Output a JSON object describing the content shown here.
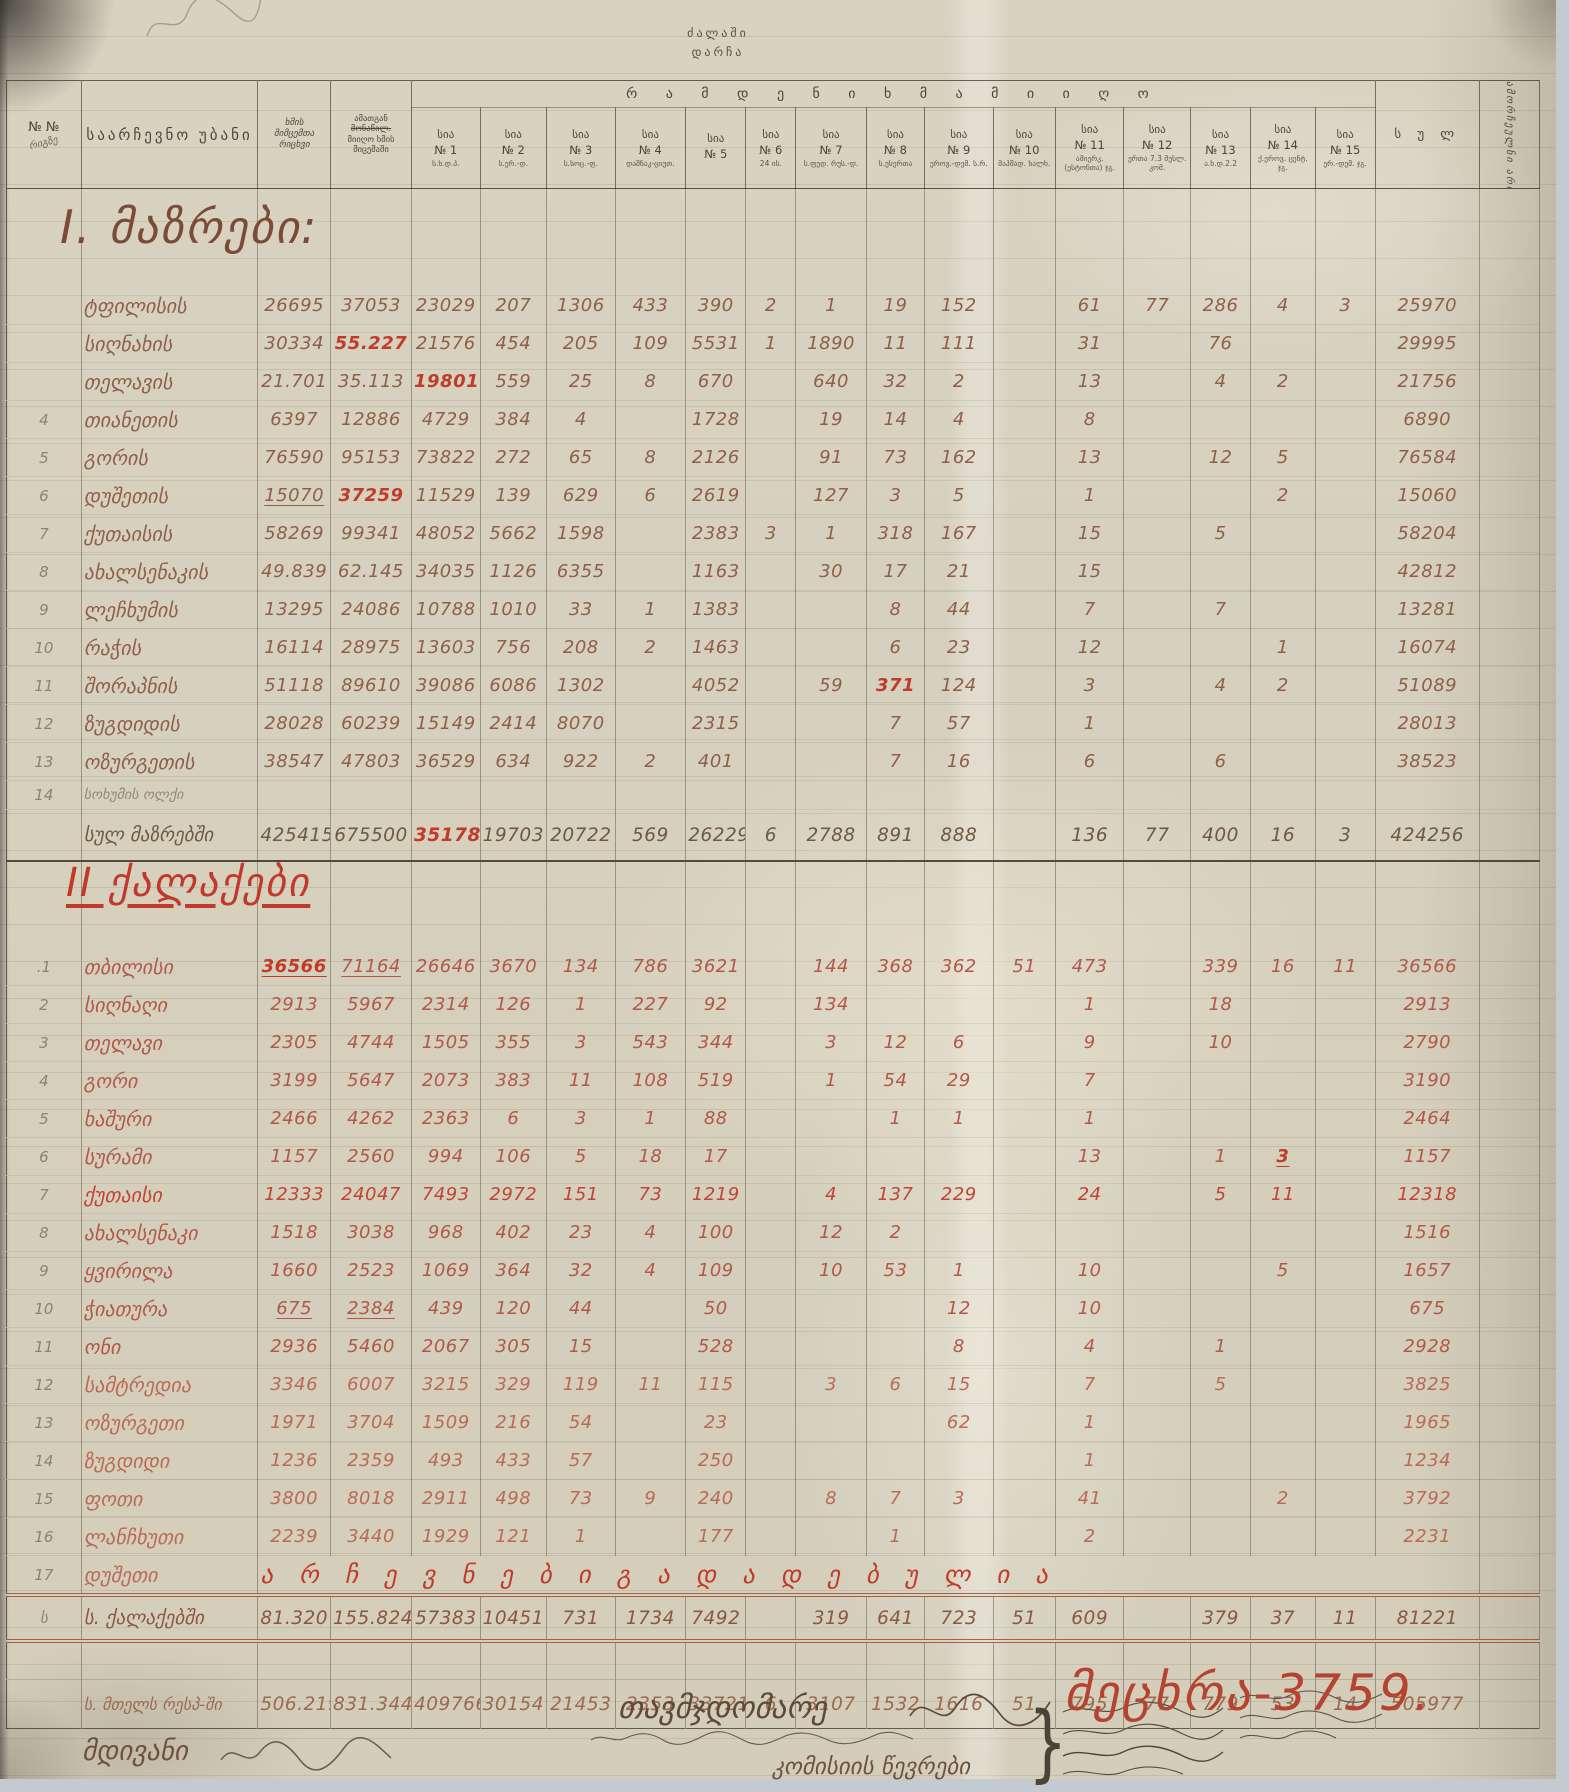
{
  "document": {
    "top_note": {
      "line1": "ძალაში",
      "line2": "დარჩა"
    }
  },
  "header": {
    "col_no": "№ №",
    "col_no_sub": "რიგზე",
    "col_precinct": "საარჩევნო უბანი",
    "col_a_lines": [
      "ხმის",
      "მიმცემთა",
      "რიცხვი"
    ],
    "col_b_lines": [
      "ამათგან",
      "მონაწილ.",
      "მიიღო ხმის",
      "მიცემაში"
    ],
    "votes_title": "რ ა მ დ ე ნ ი   ხ მ ა   მ ი ი ღ ო",
    "list_word": "სია",
    "lists": [
      {
        "no": "№ 1",
        "sub": "ს.ხ.დ.პ."
      },
      {
        "no": "№ 2",
        "sub": "ს.ერ.-დ."
      },
      {
        "no": "№ 3",
        "sub": "ს.სოც.-ფ."
      },
      {
        "no": "№ 4",
        "sub": "დაშნაკ-ციუთ."
      },
      {
        "no": "№ 5",
        "sub": ""
      },
      {
        "no": "№ 6",
        "sub": "24 ის."
      },
      {
        "no": "№ 7",
        "sub": "ს.ფედ. რუს.-დ."
      },
      {
        "no": "№ 8",
        "sub": "ს.ესერთა"
      },
      {
        "no": "№ 9",
        "sub": "ეროვ.-დემ. ს.რ."
      },
      {
        "no": "№ 10",
        "sub": "მაჰმად. ხალხ."
      },
      {
        "no": "№ 11",
        "sub": "ამიერკ. (ესტონთა) ჯგ."
      },
      {
        "no": "№ 12",
        "sub": "ერთა 7.3 მუსლ. კომ."
      },
      {
        "no": "№ 13",
        "sub": "ა.ხ.დ.2.2"
      },
      {
        "no": "№ 14",
        "sub": "ქ.ეროვ. ცენტ. ჯგ."
      },
      {
        "no": "№ 15",
        "sub": "ერ.-დემ. ჯგ."
      }
    ],
    "col_total": "ს უ ლ",
    "col_remark_vertical": "ამორჩეულნი არიან"
  },
  "sections": [
    {
      "title": "I. მაზრები:",
      "ink": "#8f5f4a",
      "rows": [
        {
          "no": "",
          "name": "ტფილისის",
          "v": [
            "26695",
            "37053",
            "23029",
            "207",
            "1306",
            "433",
            "390",
            "2",
            "1",
            "19",
            "152",
            "",
            "61",
            "77",
            "286",
            "4",
            "3",
            "25970"
          ]
        },
        {
          "no": "",
          "name": "სიღნახის",
          "v": [
            "30334",
            "55.227",
            "21576",
            "454",
            "205",
            "109",
            "5531",
            "1",
            "1890",
            "11",
            "111",
            "",
            "31",
            "",
            "76",
            "",
            "",
            "29995"
          ],
          "red": [
            1
          ]
        },
        {
          "no": "",
          "name": "თელავის",
          "v": [
            "21.701",
            "35.113",
            "19801",
            "559",
            "25",
            "8",
            "670",
            "",
            "640",
            "32",
            "2",
            "",
            "13",
            "",
            "4",
            "2",
            "",
            "21756"
          ],
          "red": [
            2
          ]
        },
        {
          "no": "4",
          "name": "თიანეთის",
          "v": [
            "6397",
            "12886",
            "4729",
            "384",
            "4",
            "",
            "1728",
            "",
            "19",
            "14",
            "4",
            "",
            "8",
            "",
            "",
            "",
            "",
            "6890"
          ]
        },
        {
          "no": "5",
          "name": "გორის",
          "v": [
            "76590",
            "95153",
            "73822",
            "272",
            "65",
            "8",
            "2126",
            "",
            "91",
            "73",
            "162",
            "",
            "13",
            "",
            "12",
            "5",
            "",
            "76584"
          ]
        },
        {
          "no": "6",
          "name": "დუშეთის",
          "v": [
            "15070",
            "37259",
            "11529",
            "139",
            "629",
            "6",
            "2619",
            "",
            "127",
            "3",
            "5",
            "",
            "1",
            "",
            "",
            "2",
            "",
            "15060"
          ],
          "red": [
            1
          ],
          "ul": [
            0
          ]
        },
        {
          "no": "7",
          "name": "ქუთაისის",
          "v": [
            "58269",
            "99341",
            "48052",
            "5662",
            "1598",
            "",
            "2383",
            "3",
            "1",
            "318",
            "167",
            "",
            "15",
            "",
            "5",
            "",
            "",
            "58204"
          ]
        },
        {
          "no": "8",
          "name": "ახალსენაკის",
          "v": [
            "49.839",
            "62.145",
            "34035",
            "1126",
            "6355",
            "",
            "1163",
            "",
            "30",
            "17",
            "21",
            "",
            "15",
            "",
            "",
            "",
            "",
            "42812"
          ]
        },
        {
          "no": "9",
          "name": "ლეჩხუმის",
          "v": [
            "13295",
            "24086",
            "10788",
            "1010",
            "33",
            "1",
            "1383",
            "",
            "",
            "8",
            "44",
            "",
            "7",
            "",
            "7",
            "",
            "",
            "13281"
          ]
        },
        {
          "no": "10",
          "name": "რაჭის",
          "v": [
            "16114",
            "28975",
            "13603",
            "756",
            "208",
            "2",
            "1463",
            "",
            "",
            "6",
            "23",
            "",
            "12",
            "",
            "",
            "1",
            "",
            "16074"
          ]
        },
        {
          "no": "11",
          "name": "შორაპნის",
          "v": [
            "51118",
            "89610",
            "39086",
            "6086",
            "1302",
            "",
            "4052",
            "",
            "59",
            "371",
            "124",
            "",
            "3",
            "",
            "4",
            "2",
            "",
            "51089"
          ],
          "red": [
            9
          ]
        },
        {
          "no": "12",
          "name": "ზუგდიდის",
          "v": [
            "28028",
            "60239",
            "15149",
            "2414",
            "8070",
            "",
            "2315",
            "",
            "",
            "7",
            "57",
            "",
            "1",
            "",
            "",
            "",
            "",
            "28013"
          ]
        },
        {
          "no": "13",
          "name": "ოზურგეთის",
          "v": [
            "38547",
            "47803",
            "36529",
            "634",
            "922",
            "2",
            "401",
            "",
            "",
            "7",
            "16",
            "",
            "6",
            "",
            "6",
            "",
            "",
            "38523"
          ]
        },
        {
          "no": "14",
          "name": "სოხუმის ოლქი",
          "v": [
            "",
            "",
            "",
            "",
            "",
            "",
            "",
            "",
            "",
            "",
            "",
            "",
            "",
            "",
            "",
            "",
            "",
            ""
          ],
          "small": true,
          "ink": "#8f887a"
        }
      ],
      "total": {
        "no": "",
        "label": "სულ მაზრებში",
        "ink": "#6d5944",
        "red": [
          2
        ],
        "v": [
          "425415",
          "675500",
          "351788",
          "19703",
          "20722",
          "569",
          "26229",
          "6",
          "2788",
          "891",
          "888",
          "",
          "136",
          "77",
          "400",
          "16",
          "3",
          "424256"
        ]
      }
    },
    {
      "title": "II ქალაქები",
      "ink": "#b2584a",
      "rows": [
        {
          "no": ".1",
          "name": "თბილისი",
          "v": [
            "36566",
            "71164",
            "26646",
            "3670",
            "134",
            "786",
            "3621",
            "",
            "144",
            "368",
            "362",
            "51",
            "473",
            "",
            "339",
            "16",
            "11",
            "36566"
          ],
          "red": [
            0
          ],
          "ul": [
            0,
            1
          ]
        },
        {
          "no": "2",
          "name": "სიღნაღი",
          "v": [
            "2913",
            "5967",
            "2314",
            "126",
            "1",
            "227",
            "92",
            "",
            "134",
            "",
            "",
            "",
            "1",
            "",
            "18",
            "",
            "",
            "2913"
          ]
        },
        {
          "no": "3",
          "name": "თელავი",
          "v": [
            "2305",
            "4744",
            "1505",
            "355",
            "3",
            "543",
            "344",
            "",
            "3",
            "12",
            "6",
            "",
            "9",
            "",
            "10",
            "",
            "",
            "2790"
          ]
        },
        {
          "no": "4",
          "name": "გორი",
          "v": [
            "3199",
            "5647",
            "2073",
            "383",
            "11",
            "108",
            "519",
            "",
            "1",
            "54",
            "29",
            "",
            "7",
            "",
            "",
            "",
            "",
            "3190"
          ]
        },
        {
          "no": "5",
          "name": "ხაშური",
          "v": [
            "2466",
            "4262",
            "2363",
            "6",
            "3",
            "1",
            "88",
            "",
            "",
            "1",
            "1",
            "",
            "1",
            "",
            "",
            "",
            "",
            "2464"
          ]
        },
        {
          "no": "6",
          "name": "სურამი",
          "v": [
            "1157",
            "2560",
            "994",
            "106",
            "5",
            "18",
            "17",
            "",
            "",
            "",
            "",
            "",
            "13",
            "",
            "1",
            "3",
            "",
            "1157"
          ],
          "red": [
            15
          ],
          "ul": [
            15
          ]
        },
        {
          "no": "7",
          "name": "ქუთაისი",
          "v": [
            "12333",
            "24047",
            "7493",
            "2972",
            "151",
            "73",
            "1219",
            "",
            "4",
            "137",
            "229",
            "",
            "24",
            "",
            "5",
            "11",
            "",
            "12318"
          ],
          "ink": "#c14434"
        },
        {
          "no": "8",
          "name": "ახალსენაკი",
          "v": [
            "1518",
            "3038",
            "968",
            "402",
            "23",
            "4",
            "100",
            "",
            "12",
            "2",
            "",
            "",
            "",
            "",
            "",
            "",
            "",
            "1516"
          ]
        },
        {
          "no": "9",
          "name": "ყვირილა",
          "v": [
            "1660",
            "2523",
            "1069",
            "364",
            "32",
            "4",
            "109",
            "",
            "10",
            "53",
            "1",
            "",
            "10",
            "",
            "",
            "5",
            "",
            "1657"
          ]
        },
        {
          "no": "10",
          "name": "ჭიათურა",
          "v": [
            "675",
            "2384",
            "439",
            "120",
            "44",
            "",
            "50",
            "",
            "",
            "",
            "12",
            "",
            "10",
            "",
            "",
            "",
            "",
            "675"
          ],
          "ul": [
            0,
            1
          ]
        },
        {
          "no": "11",
          "name": "ონი",
          "v": [
            "2936",
            "5460",
            "2067",
            "305",
            "15",
            "",
            "528",
            "",
            "",
            "",
            "8",
            "",
            "4",
            "",
            "1",
            "",
            "",
            "2928"
          ]
        },
        {
          "no": "12",
          "name": "სამტრედია",
          "v": [
            "3346",
            "6007",
            "3215",
            "329",
            "119",
            "11",
            "115",
            "",
            "3",
            "6",
            "15",
            "",
            "7",
            "",
            "5",
            "",
            "",
            "3825"
          ],
          "ink": "#ba6a55"
        },
        {
          "no": "13",
          "name": "ოზურგეთი",
          "v": [
            "1971",
            "3704",
            "1509",
            "216",
            "54",
            "",
            "23",
            "",
            "",
            "",
            "62",
            "",
            "1",
            "",
            "",
            "",
            "",
            "1965"
          ],
          "ink": "#ba6a55"
        },
        {
          "no": "14",
          "name": "ზუგდიდი",
          "v": [
            "1236",
            "2359",
            "493",
            "433",
            "57",
            "",
            "250",
            "",
            "",
            "",
            "",
            "",
            "1",
            "",
            "",
            "",
            "",
            "1234"
          ],
          "ink": "#ba6a55"
        },
        {
          "no": "15",
          "name": "ფოთი",
          "v": [
            "3800",
            "8018",
            "2911",
            "498",
            "73",
            "9",
            "240",
            "",
            "8",
            "7",
            "3",
            "",
            "41",
            "",
            "",
            "2",
            "",
            "3792"
          ],
          "ink": "#ba6a55"
        },
        {
          "no": "16",
          "name": "ლანჩხუთი",
          "v": [
            "2239",
            "3440",
            "1929",
            "121",
            "1",
            "",
            "177",
            "",
            "",
            "1",
            "",
            "",
            "2",
            "",
            "",
            "",
            "",
            "2231"
          ],
          "ink": "#ba6a55"
        },
        {
          "no": "17",
          "name": "დუშეთი",
          "spread": "ა რ ჩ ე ვ ნ ე ბ ი    გ ა დ ა დ ე ბ უ ლ ი ა",
          "ink": "#ba6a55"
        }
      ],
      "total": {
        "no": "ს",
        "label": "ს. ქალაქებში",
        "ink": "#8a5743",
        "v": [
          "81.320",
          "155.824",
          "57383",
          "10451",
          "731",
          "1734",
          "7492",
          "",
          "319",
          "641",
          "723",
          "51",
          "609",
          "",
          "379",
          "37",
          "11",
          "81221"
        ]
      }
    }
  ],
  "grand_total": {
    "no": "",
    "label": "ს. მთელს რესპ-ში",
    "ink": "#9c6a50",
    "v": [
      "506.219",
      "831.344",
      "409766",
      "30154",
      "21453",
      "2353",
      "33721",
      "6",
      "3107",
      "1532",
      "1616",
      "51",
      "795",
      "77",
      "779",
      "53",
      "14",
      "505977"
    ]
  },
  "footer": {
    "secretary": "მდივანი",
    "chairman": "თავმჯდომარე",
    "members": "კომისიის წევრები",
    "brace": "}",
    "stamp": "მეცხრა-3759."
  }
}
